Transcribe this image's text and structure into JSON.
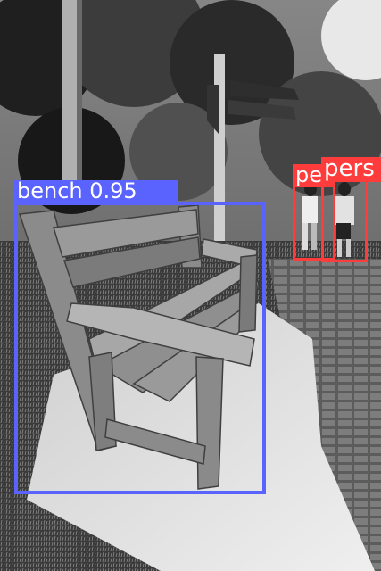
{
  "detections": [
    {
      "label": "bench 0.95",
      "class": "bench",
      "color": "#5b63ff"
    },
    {
      "label": "pe",
      "class": "person",
      "color": "#ff3c3c"
    },
    {
      "label": "pers",
      "class": "person",
      "color": "#ff3c3c"
    }
  ],
  "scene": {
    "description_tokens": [
      "park",
      "bench",
      "paved path",
      "signpost",
      "trees",
      "two people walking"
    ],
    "palette": {
      "sky": "#f2f2f2",
      "foliage_dark": "#1a1a1a",
      "foliage_mid": "#555555",
      "concrete": "#d8d8d8",
      "wood": "#8a8a8a",
      "path": "#6e6e6e"
    }
  }
}
